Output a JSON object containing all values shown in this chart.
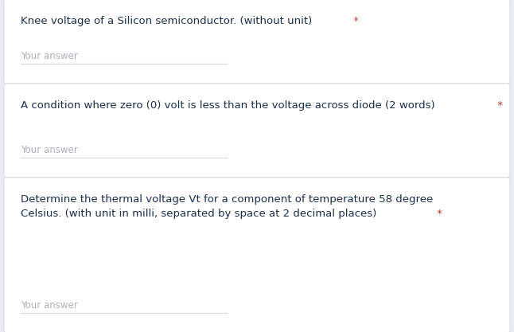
{
  "background_color": "#ebebf3",
  "card_color": "#ffffff",
  "card_border_color": "#d8d8e0",
  "questions": [
    {
      "lines": [
        "Knee voltage of a Silicon semiconductor. (without unit)"
      ],
      "asterisk": "*",
      "your_answer": "Your answer",
      "text_color": "#1a2e4a",
      "milli_color": "#c0392b",
      "answer_color": "#b0b0b8",
      "line_color": "#cccccc"
    },
    {
      "lines": [
        "A condition where zero (0) volt is less than the voltage across diode (2 words)"
      ],
      "asterisk": "*",
      "your_answer": "Your answer",
      "text_color": "#1a2e4a",
      "milli_color": "#c0392b",
      "answer_color": "#b0b0b8",
      "line_color": "#cccccc"
    },
    {
      "lines": [
        "Determine the thermal voltage Vt for a component of temperature 58 degree",
        "Celsius. (with unit in milli, separated by space at 2 decimal places)"
      ],
      "asterisk": "*",
      "your_answer": "Your answer",
      "text_color": "#1a2e4a",
      "milli_color": "#c0392b",
      "answer_color": "#b0b0b8",
      "line_color": "#cccccc"
    }
  ],
  "figsize": [
    6.46,
    4.17
  ],
  "dpi": 100
}
